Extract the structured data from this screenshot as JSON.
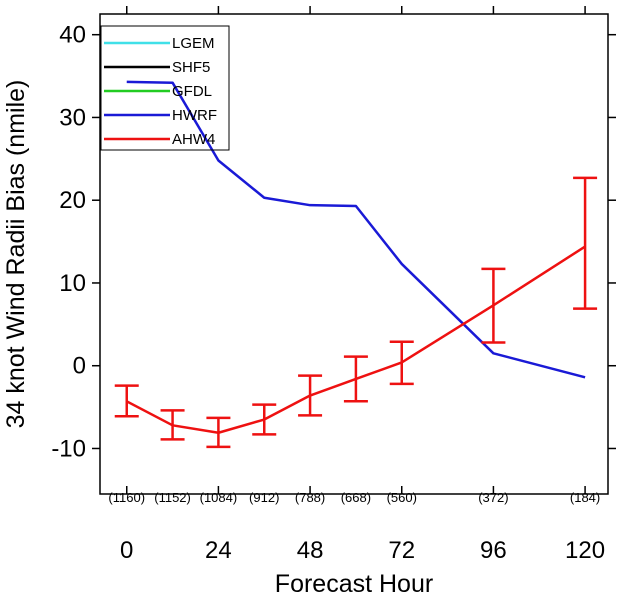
{
  "chart_data": {
    "type": "line",
    "xlabel": "Forecast Hour",
    "ylabel": "34 knot Wind Radii Bias (nmile)",
    "xlim": [
      -7,
      126
    ],
    "ylim": [
      -15.5,
      42.5
    ],
    "x_ticks": [
      0,
      24,
      48,
      72,
      96,
      120
    ],
    "x_tick_labels": [
      "0",
      "24",
      "48",
      "72",
      "96",
      "120"
    ],
    "y_ticks": [
      -10,
      0,
      10,
      20,
      30,
      40
    ],
    "y_tick_labels": [
      "-10",
      "0",
      "10",
      "20",
      "30",
      "40"
    ],
    "grid": false,
    "legend": {
      "placement": "top-left",
      "entries": [
        {
          "name": "LGEM",
          "color": "#40e0e8"
        },
        {
          "name": "SHF5",
          "color": "#000000"
        },
        {
          "name": "GFDL",
          "color": "#22cc22"
        },
        {
          "name": "HWRF",
          "color": "#1a1ad6"
        },
        {
          "name": "AHW4",
          "color": "#ee1111"
        }
      ]
    },
    "series": [
      {
        "name": "HWRF",
        "color": "#1a1ad6",
        "x": [
          0,
          12,
          24,
          36,
          48,
          60,
          72,
          96,
          120
        ],
        "values": [
          34.3,
          34.2,
          24.8,
          20.3,
          19.4,
          19.3,
          12.3,
          1.5,
          -1.4
        ]
      },
      {
        "name": "AHW4",
        "color": "#ee1111",
        "x": [
          0,
          12,
          24,
          36,
          48,
          60,
          72,
          96,
          120
        ],
        "values": [
          -4.3,
          -7.2,
          -8.1,
          -6.5,
          -3.6,
          -1.6,
          0.4,
          7.3,
          14.4
        ],
        "error_low": [
          -6.1,
          -8.9,
          -9.8,
          -8.3,
          -6.0,
          -4.3,
          -2.2,
          2.8,
          6.9
        ],
        "error_high": [
          -2.4,
          -5.4,
          -6.3,
          -4.7,
          -1.2,
          1.1,
          2.9,
          11.7,
          22.7
        ]
      }
    ],
    "sample_counts": {
      "x": [
        0,
        12,
        24,
        36,
        48,
        60,
        72,
        96,
        120
      ],
      "labels": [
        "(1160)",
        "(1152)",
        "(1084)",
        "(912)",
        "(788)",
        "(668)",
        "(560)",
        "(372)",
        "(184)"
      ],
      "y": -15.5
    }
  }
}
